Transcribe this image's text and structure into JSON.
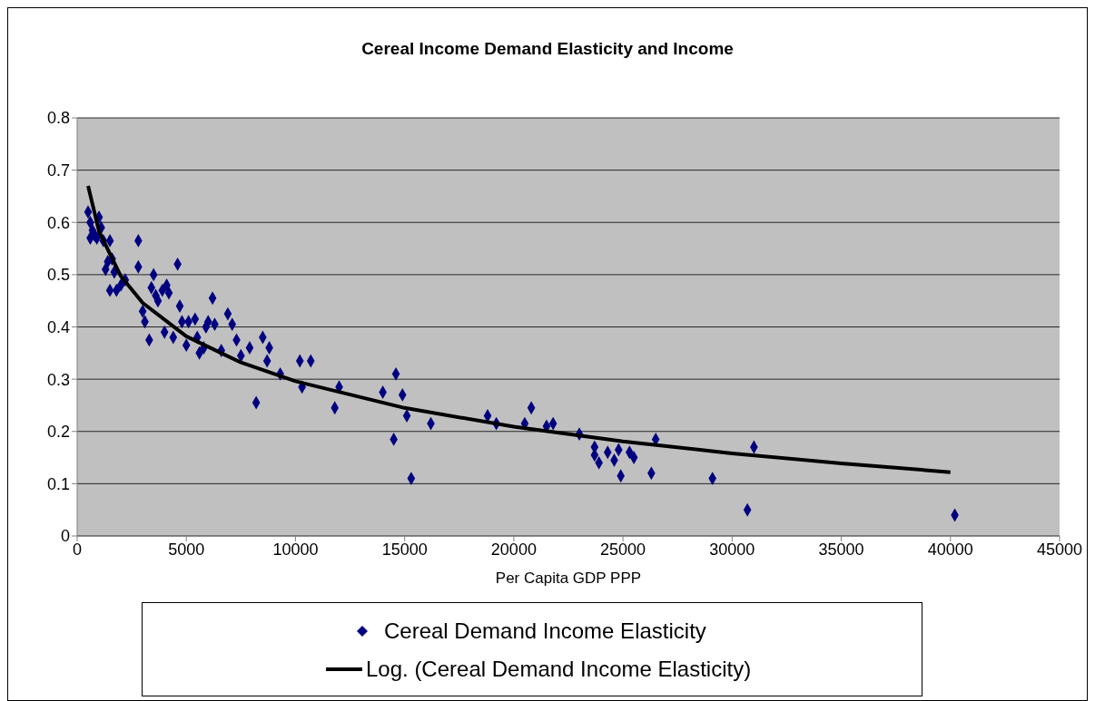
{
  "chart_data": {
    "type": "scatter",
    "title": "Cereal Income Demand Elasticity and Income",
    "xlabel": "Per Capita GDP PPP",
    "xlim": [
      0,
      45000
    ],
    "xticks": [
      0,
      5000,
      10000,
      15000,
      20000,
      25000,
      30000,
      35000,
      40000,
      45000
    ],
    "ylim": [
      0,
      0.8
    ],
    "yticks": [
      0,
      0.1,
      0.2,
      0.3,
      0.4,
      0.5,
      0.6,
      0.7,
      0.8
    ],
    "grid": "y",
    "legend": "bottom",
    "series": [
      {
        "name": "Cereal Demand Income Elasticity",
        "color": "#000080",
        "marker": "diamond",
        "x": [
          500,
          600,
          700,
          600,
          800,
          1000,
          1100,
          1200,
          900,
          1300,
          1400,
          1500,
          1600,
          1700,
          1500,
          1800,
          2000,
          2200,
          2800,
          2800,
          3000,
          3100,
          3300,
          3400,
          3500,
          3600,
          3700,
          3900,
          4000,
          4100,
          4200,
          4400,
          4600,
          4700,
          4800,
          5000,
          5100,
          5400,
          5500,
          5600,
          5800,
          5900,
          6000,
          6200,
          6300,
          6600,
          6900,
          7100,
          7300,
          7500,
          7900,
          8200,
          8500,
          8700,
          8800,
          9300,
          10200,
          10300,
          10700,
          11800,
          12000,
          14000,
          14500,
          14600,
          14900,
          15100,
          15300,
          16200,
          18800,
          19200,
          20500,
          20800,
          21500,
          21800,
          23000,
          23700,
          23700,
          23900,
          24300,
          24600,
          24800,
          24900,
          25300,
          25500,
          26300,
          26500,
          29100,
          30700,
          31000,
          40200
        ],
        "values": [
          0.62,
          0.6,
          0.585,
          0.57,
          0.575,
          0.61,
          0.59,
          0.565,
          0.57,
          0.51,
          0.525,
          0.565,
          0.53,
          0.505,
          0.47,
          0.47,
          0.48,
          0.49,
          0.565,
          0.515,
          0.43,
          0.41,
          0.375,
          0.475,
          0.5,
          0.46,
          0.45,
          0.47,
          0.39,
          0.48,
          0.465,
          0.38,
          0.52,
          0.44,
          0.41,
          0.365,
          0.41,
          0.415,
          0.38,
          0.35,
          0.36,
          0.4,
          0.41,
          0.455,
          0.405,
          0.355,
          0.425,
          0.405,
          0.375,
          0.345,
          0.36,
          0.255,
          0.38,
          0.335,
          0.36,
          0.31,
          0.335,
          0.285,
          0.335,
          0.245,
          0.285,
          0.275,
          0.185,
          0.31,
          0.27,
          0.23,
          0.11,
          0.215,
          0.23,
          0.215,
          0.215,
          0.245,
          0.21,
          0.215,
          0.195,
          0.17,
          0.155,
          0.14,
          0.16,
          0.145,
          0.165,
          0.115,
          0.16,
          0.15,
          0.12,
          0.185,
          0.11,
          0.05,
          0.17,
          0.04
        ]
      },
      {
        "name": "Log. (Cereal Demand Income Elasticity)",
        "type": "line",
        "color": "#000000",
        "marker": "none",
        "line_style": "solid",
        "x": [
          500,
          1000,
          2000,
          3000,
          5000,
          7500,
          10000,
          15000,
          20000,
          25000,
          30000,
          35000,
          40000
        ],
        "values": [
          0.67,
          0.583,
          0.497,
          0.446,
          0.382,
          0.332,
          0.296,
          0.245,
          0.209,
          0.181,
          0.158,
          0.139,
          0.122
        ]
      }
    ]
  }
}
